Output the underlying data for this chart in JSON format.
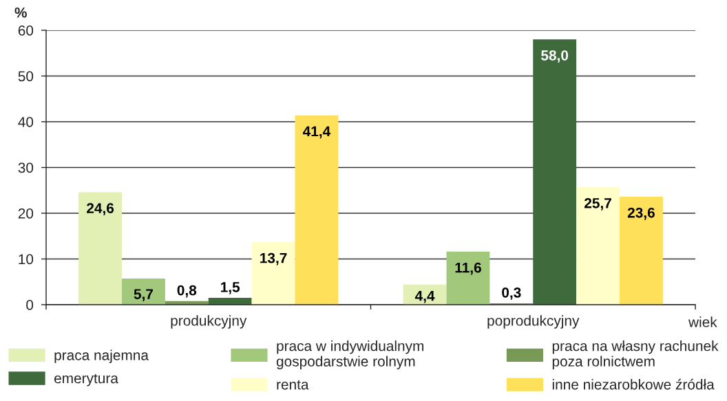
{
  "chart_data": {
    "type": "bar",
    "xlabel": "wiek",
    "ylabel": "%",
    "categories": [
      "produkcyjny",
      "poprodukcyjny"
    ],
    "series": [
      {
        "name": "praca najemna",
        "color": "#e2f0b5",
        "values": [
          24.6,
          4.4
        ],
        "value_labels": [
          "24,6",
          "4,4"
        ]
      },
      {
        "name": "praca w indywidualnym\ngospodarstwie rolnym",
        "color": "#a2c97b",
        "values": [
          5.7,
          11.6
        ],
        "value_labels": [
          "5,7",
          "11,6"
        ]
      },
      {
        "name": "praca na własny rachunek\npoza rolnictwem",
        "color": "#789a56",
        "values": [
          0.8,
          0.3
        ],
        "value_labels": [
          "0,8",
          "0,3"
        ]
      },
      {
        "name": "emerytura",
        "color": "#3e6a3c",
        "values": [
          1.5,
          58.0
        ],
        "value_labels": [
          "1,5",
          "58,0"
        ]
      },
      {
        "name": "renta",
        "color": "#fffdc8",
        "values": [
          13.7,
          25.7
        ],
        "value_labels": [
          "13,7",
          "25,7"
        ]
      },
      {
        "name": "inne niezarobkowe źródła",
        "color": "#fee05a",
        "values": [
          41.4,
          23.6
        ],
        "value_labels": [
          "41,4",
          "23,6"
        ]
      }
    ],
    "ylim": [
      0,
      60
    ],
    "yticks": [
      0,
      10,
      20,
      30,
      40,
      50,
      60
    ],
    "grid": "y",
    "legend": "bottom"
  }
}
